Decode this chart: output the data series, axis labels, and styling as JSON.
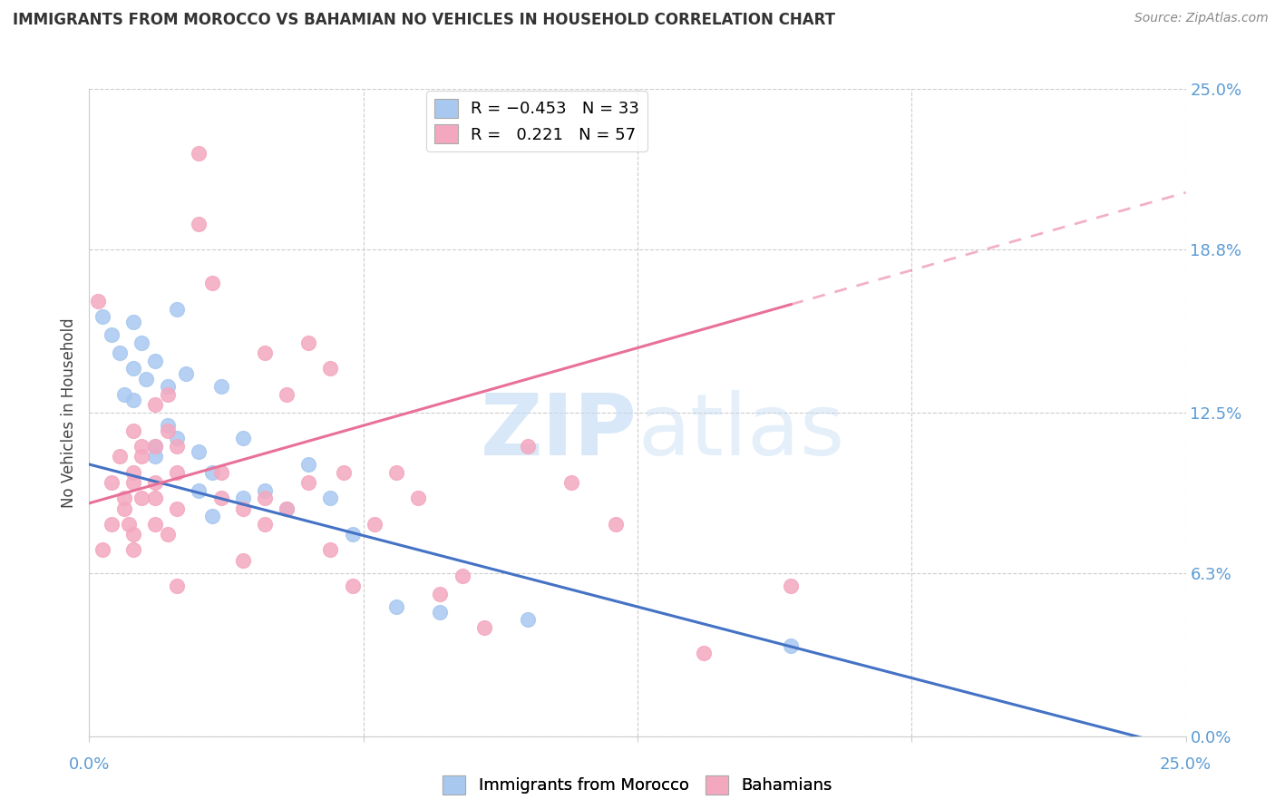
{
  "title": "IMMIGRANTS FROM MOROCCO VS BAHAMIAN NO VEHICLES IN HOUSEHOLD CORRELATION CHART",
  "source": "Source: ZipAtlas.com",
  "ylabel": "No Vehicles in Household",
  "y_tick_labels": [
    "0.0%",
    "6.3%",
    "12.5%",
    "18.8%",
    "25.0%"
  ],
  "y_tick_values": [
    0.0,
    6.3,
    12.5,
    18.8,
    25.0
  ],
  "x_tick_values": [
    0.0,
    6.25,
    12.5,
    18.75,
    25.0
  ],
  "xlim": [
    0.0,
    25.0
  ],
  "ylim": [
    0.0,
    25.0
  ],
  "legend_blue_r": "R = -0.453",
  "legend_blue_n": "N = 33",
  "legend_pink_r": "R =  0.221",
  "legend_pink_n": "N = 57",
  "blue_color": "#A8C8F0",
  "pink_color": "#F4A8C0",
  "blue_line_color": "#4472C4",
  "pink_line_color": "#E87099",
  "watermark_color": "#C5DCF5",
  "blue_label": "Immigrants from Morocco",
  "pink_label": "Bahamians",
  "blue_line_x0": 0.0,
  "blue_line_y0": 10.5,
  "blue_line_x1": 25.0,
  "blue_line_y1": -0.5,
  "pink_line_x0": 0.0,
  "pink_line_y0": 9.0,
  "pink_line_x1": 25.0,
  "pink_line_y1": 21.0,
  "pink_solid_end_x": 16.0,
  "blue_dots": [
    [
      0.3,
      16.2
    ],
    [
      0.5,
      15.5
    ],
    [
      0.7,
      14.8
    ],
    [
      0.8,
      13.2
    ],
    [
      1.0,
      16.0
    ],
    [
      1.0,
      14.2
    ],
    [
      1.0,
      13.0
    ],
    [
      1.2,
      15.2
    ],
    [
      1.3,
      13.8
    ],
    [
      1.5,
      14.5
    ],
    [
      1.5,
      11.2
    ],
    [
      1.5,
      10.8
    ],
    [
      1.8,
      13.5
    ],
    [
      1.8,
      12.0
    ],
    [
      2.0,
      16.5
    ],
    [
      2.0,
      11.5
    ],
    [
      2.2,
      14.0
    ],
    [
      2.5,
      11.0
    ],
    [
      2.5,
      9.5
    ],
    [
      2.8,
      10.2
    ],
    [
      3.0,
      13.5
    ],
    [
      3.5,
      11.5
    ],
    [
      3.5,
      9.2
    ],
    [
      4.0,
      9.5
    ],
    [
      4.5,
      8.8
    ],
    [
      5.0,
      10.5
    ],
    [
      5.5,
      9.2
    ],
    [
      6.0,
      7.8
    ],
    [
      7.0,
      5.0
    ],
    [
      8.0,
      4.8
    ],
    [
      10.0,
      4.5
    ],
    [
      16.0,
      3.5
    ],
    [
      2.8,
      8.5
    ]
  ],
  "pink_dots": [
    [
      0.2,
      16.8
    ],
    [
      0.3,
      7.2
    ],
    [
      0.5,
      8.2
    ],
    [
      0.5,
      9.8
    ],
    [
      0.7,
      10.8
    ],
    [
      0.8,
      9.2
    ],
    [
      0.8,
      8.8
    ],
    [
      0.9,
      8.2
    ],
    [
      1.0,
      11.8
    ],
    [
      1.0,
      10.2
    ],
    [
      1.0,
      9.8
    ],
    [
      1.0,
      7.8
    ],
    [
      1.0,
      7.2
    ],
    [
      1.2,
      11.2
    ],
    [
      1.2,
      10.8
    ],
    [
      1.2,
      9.2
    ],
    [
      1.5,
      12.8
    ],
    [
      1.5,
      11.2
    ],
    [
      1.5,
      9.8
    ],
    [
      1.5,
      9.2
    ],
    [
      1.5,
      8.2
    ],
    [
      1.8,
      13.2
    ],
    [
      1.8,
      11.8
    ],
    [
      1.8,
      7.8
    ],
    [
      2.0,
      11.2
    ],
    [
      2.0,
      10.2
    ],
    [
      2.0,
      8.8
    ],
    [
      2.0,
      5.8
    ],
    [
      2.5,
      22.5
    ],
    [
      2.5,
      19.8
    ],
    [
      2.8,
      17.5
    ],
    [
      3.0,
      10.2
    ],
    [
      3.0,
      9.2
    ],
    [
      3.5,
      8.8
    ],
    [
      3.5,
      6.8
    ],
    [
      4.0,
      14.8
    ],
    [
      4.0,
      9.2
    ],
    [
      4.0,
      8.2
    ],
    [
      4.5,
      13.2
    ],
    [
      4.5,
      8.8
    ],
    [
      5.0,
      15.2
    ],
    [
      5.0,
      9.8
    ],
    [
      5.5,
      14.2
    ],
    [
      5.5,
      7.2
    ],
    [
      5.8,
      10.2
    ],
    [
      6.0,
      5.8
    ],
    [
      7.0,
      10.2
    ],
    [
      7.5,
      9.2
    ],
    [
      8.0,
      5.5
    ],
    [
      8.5,
      6.2
    ],
    [
      9.0,
      4.2
    ],
    [
      10.0,
      11.2
    ],
    [
      11.0,
      9.8
    ],
    [
      12.0,
      8.2
    ],
    [
      14.0,
      3.2
    ],
    [
      16.0,
      5.8
    ],
    [
      6.5,
      8.2
    ]
  ]
}
